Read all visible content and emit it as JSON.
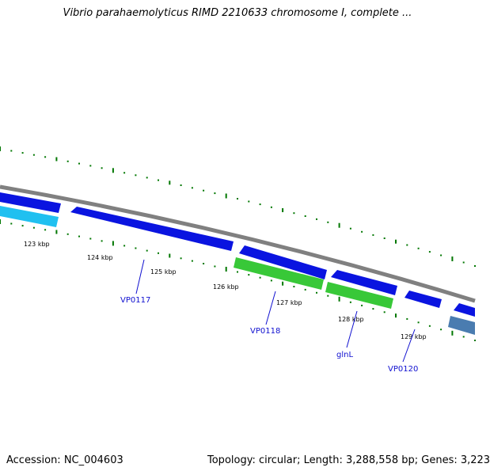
{
  "title": "Vibrio parahaemolyticus RIMD 2210633 chromosome I, complete ...",
  "footer": {
    "accession": "Accession: NC_004603",
    "summary": "Topology: circular; Length: 3,288,558 bp; Genes: 3,223"
  },
  "axis_ticks": [
    "123 kbp",
    "124 kbp",
    "125 kbp",
    "126 kbp",
    "127 kbp",
    "128 kbp",
    "129 kbp"
  ],
  "genes": [
    {
      "label": "VP0117"
    },
    {
      "label": "VP0118"
    },
    {
      "label": "glnL"
    },
    {
      "label": "VP0120"
    }
  ],
  "colors": {
    "backbone": "#808080",
    "cds_blue": "#0a14e0",
    "cds_cyan": "#20c0f0",
    "cds_green": "#38c838",
    "cds_steel": "#4a7cb0",
    "tick_green": "#007700",
    "label_blue": "#1010d0"
  }
}
